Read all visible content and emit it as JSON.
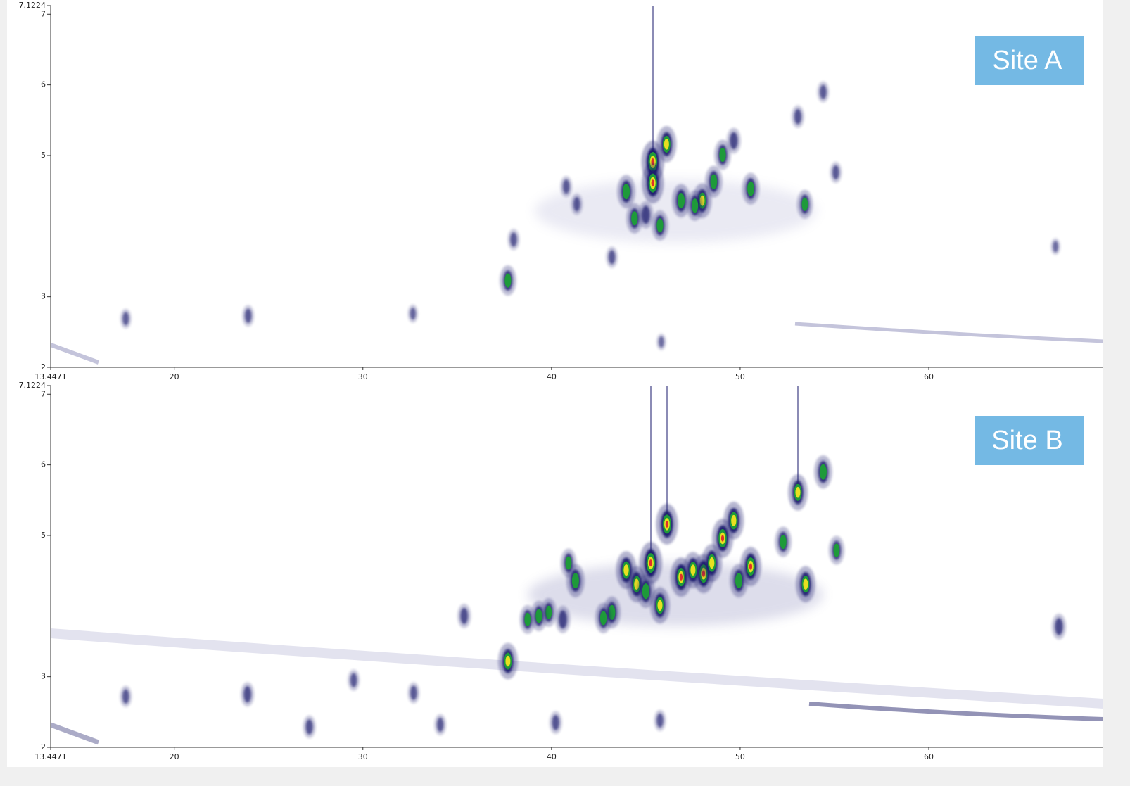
{
  "chart_data": [
    {
      "type": "peaks",
      "annotation": "Site A",
      "xlim": [
        13.4471,
        69.25
      ],
      "ylim": [
        2,
        7.1224
      ],
      "xticks": [
        13.4471,
        20,
        30,
        40,
        50,
        60
      ],
      "yticks": [
        2,
        3,
        5,
        6,
        7,
        7.1224
      ],
      "colormap": [
        "#1a1a6e",
        "#1e9a3a",
        "#e8e020",
        "#e0302a"
      ],
      "zlim": [
        0,
        1
      ],
      "x": [
        45.37,
        45.37,
        46.1,
        43.96,
        44.4,
        45.0,
        45.75,
        46.87,
        47.99,
        47.6,
        48.6,
        49.07,
        49.66,
        50.56,
        53.43,
        53.06,
        54.4,
        55.07,
        37.69,
        37.99,
        40.78,
        41.34,
        43.2,
        17.43,
        23.92,
        32.65,
        66.72,
        45.82
      ],
      "values": [
        4.91,
        4.61,
        5.16,
        4.49,
        4.11,
        4.16,
        4.01,
        4.36,
        4.36,
        4.29,
        4.63,
        5.01,
        5.21,
        4.53,
        4.31,
        5.55,
        5.9,
        4.76,
        3.23,
        3.81,
        4.56,
        4.31,
        3.56,
        2.69,
        2.73,
        2.76,
        3.71,
        2.36
      ],
      "intensity": [
        1,
        0.95,
        0.8,
        0.7,
        0.6,
        0.5,
        0.6,
        0.7,
        0.75,
        0.6,
        0.65,
        0.6,
        0.45,
        0.65,
        0.55,
        0.35,
        0.3,
        0.3,
        0.6,
        0.3,
        0.3,
        0.3,
        0.3,
        0.25,
        0.3,
        0.2,
        0.15,
        0.15
      ]
    },
    {
      "type": "peaks",
      "annotation": "Site B",
      "xlim": [
        13.4471,
        69.25
      ],
      "ylim": [
        2,
        7.1224
      ],
      "xticks": [
        13.4471,
        20,
        30,
        40,
        50,
        60
      ],
      "yticks": [
        2,
        3,
        5,
        6,
        7,
        7.1224
      ],
      "colormap": [
        "#1a1a6e",
        "#1e9a3a",
        "#e8e020",
        "#e0302a"
      ],
      "zlim": [
        0,
        1
      ],
      "x": [
        45.26,
        46.12,
        49.07,
        49.66,
        50.56,
        48.06,
        46.87,
        47.5,
        45.75,
        44.51,
        43.96,
        45.0,
        48.5,
        49.93,
        52.28,
        53.06,
        54.4,
        53.47,
        55.11,
        37.69,
        41.27,
        40.9,
        43.2,
        42.75,
        39.85,
        39.33,
        38.73,
        40.6,
        35.37,
        66.9,
        23.88,
        17.43,
        27.16,
        34.1,
        40.22,
        45.75,
        29.51,
        32.69
      ],
      "values": [
        4.61,
        5.16,
        4.96,
        5.21,
        4.56,
        4.46,
        4.41,
        4.51,
        4.01,
        4.31,
        4.51,
        4.21,
        4.61,
        4.36,
        4.91,
        5.61,
        5.9,
        4.31,
        4.79,
        3.22,
        4.36,
        4.61,
        3.91,
        3.83,
        3.91,
        3.86,
        3.81,
        3.81,
        3.86,
        3.71,
        2.75,
        2.72,
        2.29,
        2.32,
        2.35,
        2.38,
        2.95,
        2.77
      ],
      "intensity": [
        1,
        0.95,
        0.9,
        0.85,
        0.9,
        0.9,
        0.9,
        0.8,
        0.8,
        0.8,
        0.85,
        0.7,
        0.85,
        0.7,
        0.6,
        0.8,
        0.7,
        0.8,
        0.55,
        0.8,
        0.7,
        0.55,
        0.65,
        0.6,
        0.55,
        0.6,
        0.55,
        0.5,
        0.4,
        0.45,
        0.4,
        0.3,
        0.35,
        0.3,
        0.35,
        0.3,
        0.3,
        0.3
      ]
    }
  ]
}
